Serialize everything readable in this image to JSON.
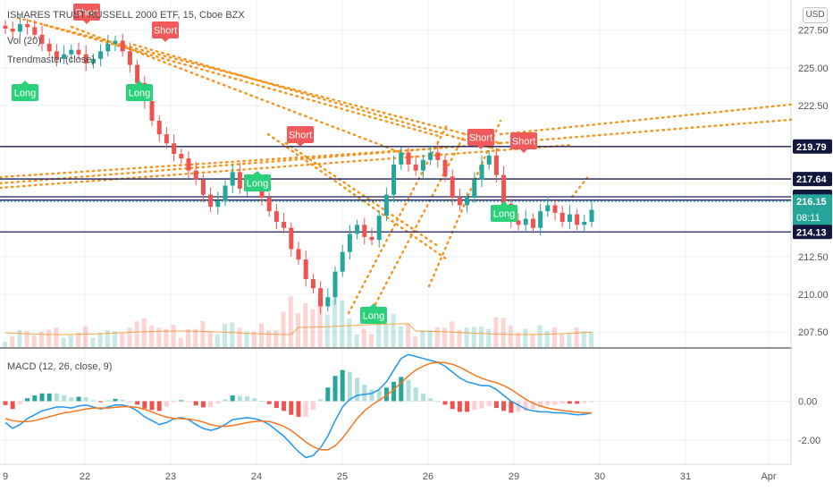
{
  "header": {
    "symbol_line": "ISHARES TRUST RUSSELL 2000 ETF, 15, Cboe BZX",
    "vol_label": "Vol (20)",
    "indicator_label": "Trendmaster (close)",
    "currency": "USD"
  },
  "macd": {
    "label": "MACD (12, 26, close, 9)"
  },
  "colors": {
    "up": "#26a69a",
    "down": "#ef5350",
    "trend": "#f7931a",
    "macd_line": "#2196f3",
    "signal_line": "#f7771e",
    "level_line": "#1a1d5c",
    "long_bg": "#2ad17a",
    "short_bg": "#f05a5a"
  },
  "chart_data": [
    {
      "type": "candlestick",
      "title": "ISHARES TRUST RUSSELL 2000 ETF, 15, Cboe BZX",
      "x_ticks": [
        "9",
        "22",
        "23",
        "24",
        "25",
        "26",
        "29",
        "30",
        "31",
        "Apr"
      ],
      "y_ticks": [
        "227.50",
        "225.00",
        "222.50",
        "212.50",
        "210.00",
        "207.50"
      ],
      "ylim": [
        206.5,
        229.5
      ],
      "price_closes": [
        227.6,
        227.4,
        227.9,
        227.7,
        227.2,
        226.6,
        226.1,
        225.6,
        225.9,
        226.2,
        225.9,
        225.3,
        225.6,
        226.1,
        226.6,
        226.8,
        226.1,
        225.2,
        224.0,
        222.8,
        221.5,
        220.6,
        220.0,
        219.3,
        219.0,
        218.2,
        217.6,
        216.6,
        215.8,
        216.2,
        217.2,
        218.1,
        217.0,
        217.6,
        217.2,
        216.4,
        215.5,
        214.8,
        214.4,
        213.0,
        212.3,
        211.0,
        210.4,
        209.2,
        209.8,
        211.5,
        212.8,
        214.0,
        214.6,
        213.8,
        213.6,
        215.2,
        216.6,
        218.6,
        219.4,
        218.6,
        218.2,
        218.9,
        219.4,
        218.9,
        217.8,
        216.4,
        215.9,
        216.4,
        217.6,
        218.6,
        219.2,
        217.9,
        216.0,
        214.9,
        214.6,
        215.0,
        214.4,
        215.5,
        215.9,
        215.4,
        214.8,
        215.3,
        214.6,
        214.8,
        215.6
      ],
      "levels": [
        "219.79",
        "217.64",
        "216.46",
        "216.24",
        "216.15",
        "214.13"
      ],
      "countdown": "08:11",
      "signals": [
        {
          "label": "Short",
          "type": "short"
        },
        {
          "label": "Short",
          "type": "short"
        },
        {
          "label": "Long",
          "type": "long"
        },
        {
          "label": "Long",
          "type": "long"
        },
        {
          "label": "Short",
          "type": "short"
        },
        {
          "label": "Long",
          "type": "long"
        },
        {
          "label": "Short",
          "type": "short"
        },
        {
          "label": "Short",
          "type": "short"
        },
        {
          "label": "Long",
          "type": "long"
        },
        {
          "label": "Long",
          "type": "long"
        }
      ]
    },
    {
      "type": "bar+line",
      "title": "MACD (12, 26, close, 9)",
      "y_ticks": [
        "0.00",
        "-2.00"
      ],
      "ylim": [
        -3.2,
        2.6
      ],
      "macd": [
        -1.1,
        -1.4,
        -1.2,
        -0.9,
        -0.7,
        -0.5,
        -0.4,
        -0.3,
        -0.3,
        -0.35,
        -0.25,
        -0.2,
        -0.3,
        -0.4,
        -0.3,
        -0.2,
        -0.2,
        -0.3,
        -0.5,
        -0.8,
        -1.0,
        -1.2,
        -1.1,
        -0.9,
        -0.85,
        -0.95,
        -1.2,
        -1.4,
        -1.5,
        -1.4,
        -1.2,
        -0.95,
        -0.9,
        -0.85,
        -0.9,
        -1.0,
        -1.2,
        -1.5,
        -1.8,
        -2.2,
        -2.6,
        -2.9,
        -2.8,
        -2.4,
        -1.8,
        -1.0,
        -0.3,
        0.1,
        0.3,
        0.35,
        0.4,
        0.6,
        1.0,
        1.6,
        2.2,
        2.4,
        2.3,
        2.2,
        2.1,
        2.0,
        1.8,
        1.5,
        1.2,
        1.0,
        0.9,
        0.8,
        0.8,
        0.6,
        0.3,
        0.0,
        -0.2,
        -0.4,
        -0.5,
        -0.55,
        -0.55,
        -0.6,
        -0.6,
        -0.65,
        -0.7,
        -0.68,
        -0.6
      ],
      "signal": [
        -0.9,
        -1.0,
        -1.05,
        -1.05,
        -1.0,
        -0.9,
        -0.8,
        -0.7,
        -0.6,
        -0.55,
        -0.48,
        -0.4,
        -0.35,
        -0.35,
        -0.35,
        -0.32,
        -0.28,
        -0.28,
        -0.32,
        -0.42,
        -0.55,
        -0.7,
        -0.82,
        -0.88,
        -0.9,
        -0.92,
        -0.98,
        -1.08,
        -1.2,
        -1.28,
        -1.3,
        -1.25,
        -1.18,
        -1.1,
        -1.05,
        -1.02,
        -1.05,
        -1.15,
        -1.3,
        -1.5,
        -1.8,
        -2.1,
        -2.35,
        -2.5,
        -2.5,
        -2.3,
        -1.9,
        -1.4,
        -0.9,
        -0.5,
        -0.2,
        0.05,
        0.3,
        0.6,
        0.95,
        1.3,
        1.6,
        1.8,
        1.95,
        2.0,
        1.98,
        1.9,
        1.75,
        1.55,
        1.35,
        1.18,
        1.05,
        0.95,
        0.8,
        0.6,
        0.35,
        0.1,
        -0.1,
        -0.25,
        -0.35,
        -0.42,
        -0.48,
        -0.52,
        -0.57,
        -0.6,
        -0.6
      ]
    }
  ]
}
